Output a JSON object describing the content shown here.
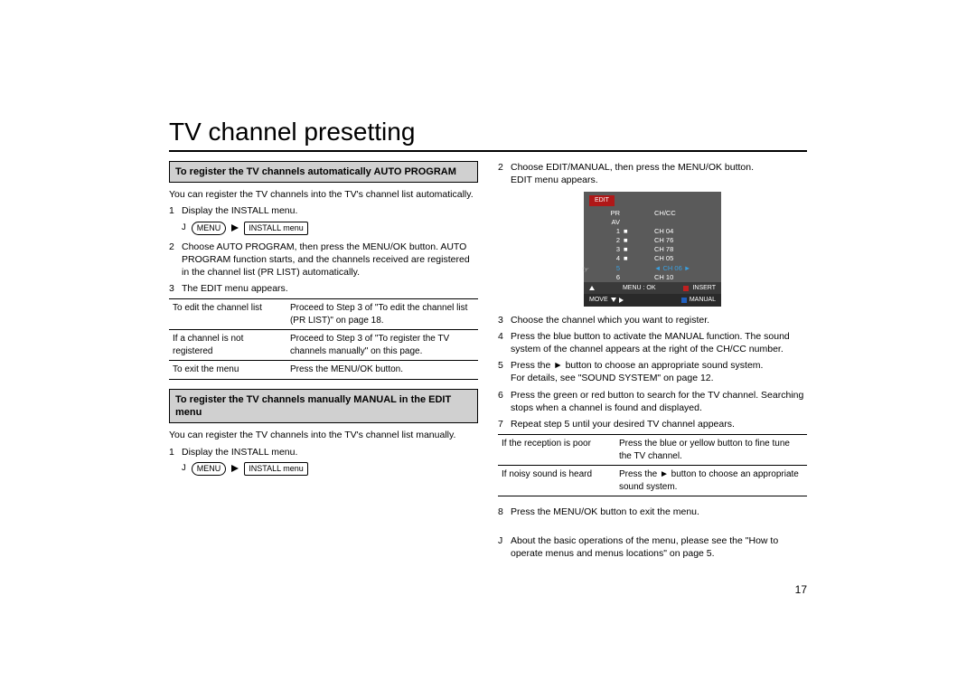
{
  "title": "TV channel presetting",
  "page_number": "17",
  "left": {
    "section1": {
      "header": "To register the TV channels automatically AUTO PROGRAM",
      "intro": "You can register the TV channels into the TV's channel list automatically.",
      "step1": "Display the INSTALL menu.",
      "menu_j": "J",
      "menu_btn": "MENU",
      "menu_target": "INSTALL menu",
      "step2": "Choose AUTO PROGRAM, then press the MENU/OK button. AUTO PROGRAM function starts, and the channels received are registered in the channel list (PR LIST) automatically.",
      "step3": "The EDIT menu appears.",
      "table": [
        [
          "To edit the channel list",
          "Proceed to Step 3 of \"To edit the channel list (PR LIST)\" on page 18."
        ],
        [
          "If a channel is not registered",
          "Proceed to Step 3 of \"To register the TV channels manually\" on this page."
        ],
        [
          "To exit the menu",
          "Press the MENU/OK button."
        ]
      ]
    },
    "section2": {
      "header": "To register the TV channels manually MANUAL in the EDIT menu",
      "intro": "You can register the TV channels into the TV's channel list manually.",
      "step1": "Display the INSTALL menu.",
      "menu_j": "J",
      "menu_btn": "MENU",
      "menu_target": "INSTALL menu"
    }
  },
  "right": {
    "step2a": "Choose EDIT/MANUAL, then press the MENU/OK button.",
    "step2b": "EDIT menu appears.",
    "edit": {
      "title": "EDIT",
      "hdr_pr": "PR",
      "hdr_ch": "CH/CC",
      "rows": [
        [
          "AV",
          "",
          ""
        ],
        [
          "1",
          "■",
          "CH 04"
        ],
        [
          "2",
          "■",
          "CH 76"
        ],
        [
          "3",
          "■",
          "CH 78"
        ],
        [
          "4",
          "■",
          "CH 05"
        ],
        [
          "5",
          "",
          "CH 06"
        ],
        [
          "6",
          "",
          "CH 10"
        ]
      ],
      "highlight_index": 5,
      "menuok": "MENU : OK",
      "insert": "INSERT",
      "move": "MOVE",
      "manual": "MANUAL"
    },
    "step3": "Choose the channel which you want to register.",
    "step4": "Press the blue button to activate the MANUAL function. The sound system of the channel appears at the right of the CH/CC number.",
    "step5a": "Press the ► button to choose an appropriate sound system.",
    "step5b": "For details, see \"SOUND SYSTEM\" on page 12.",
    "step6": "Press the green or red button to search for the TV channel. Searching stops when a channel is found and displayed.",
    "step7": "Repeat step 5 until your desired TV channel appears.",
    "table": [
      [
        "If the reception is poor",
        "Press the blue or yellow button to ﬁne tune the TV channel."
      ],
      [
        "If noisy sound is heard",
        "Press the ► button to choose an appropriate sound system."
      ]
    ],
    "step8": "Press the MENU/OK button to exit the menu.",
    "note_mark": "J",
    "note": "About the basic operations of the menu, please see the \"How to operate menus and menus locations\" on page 5."
  }
}
